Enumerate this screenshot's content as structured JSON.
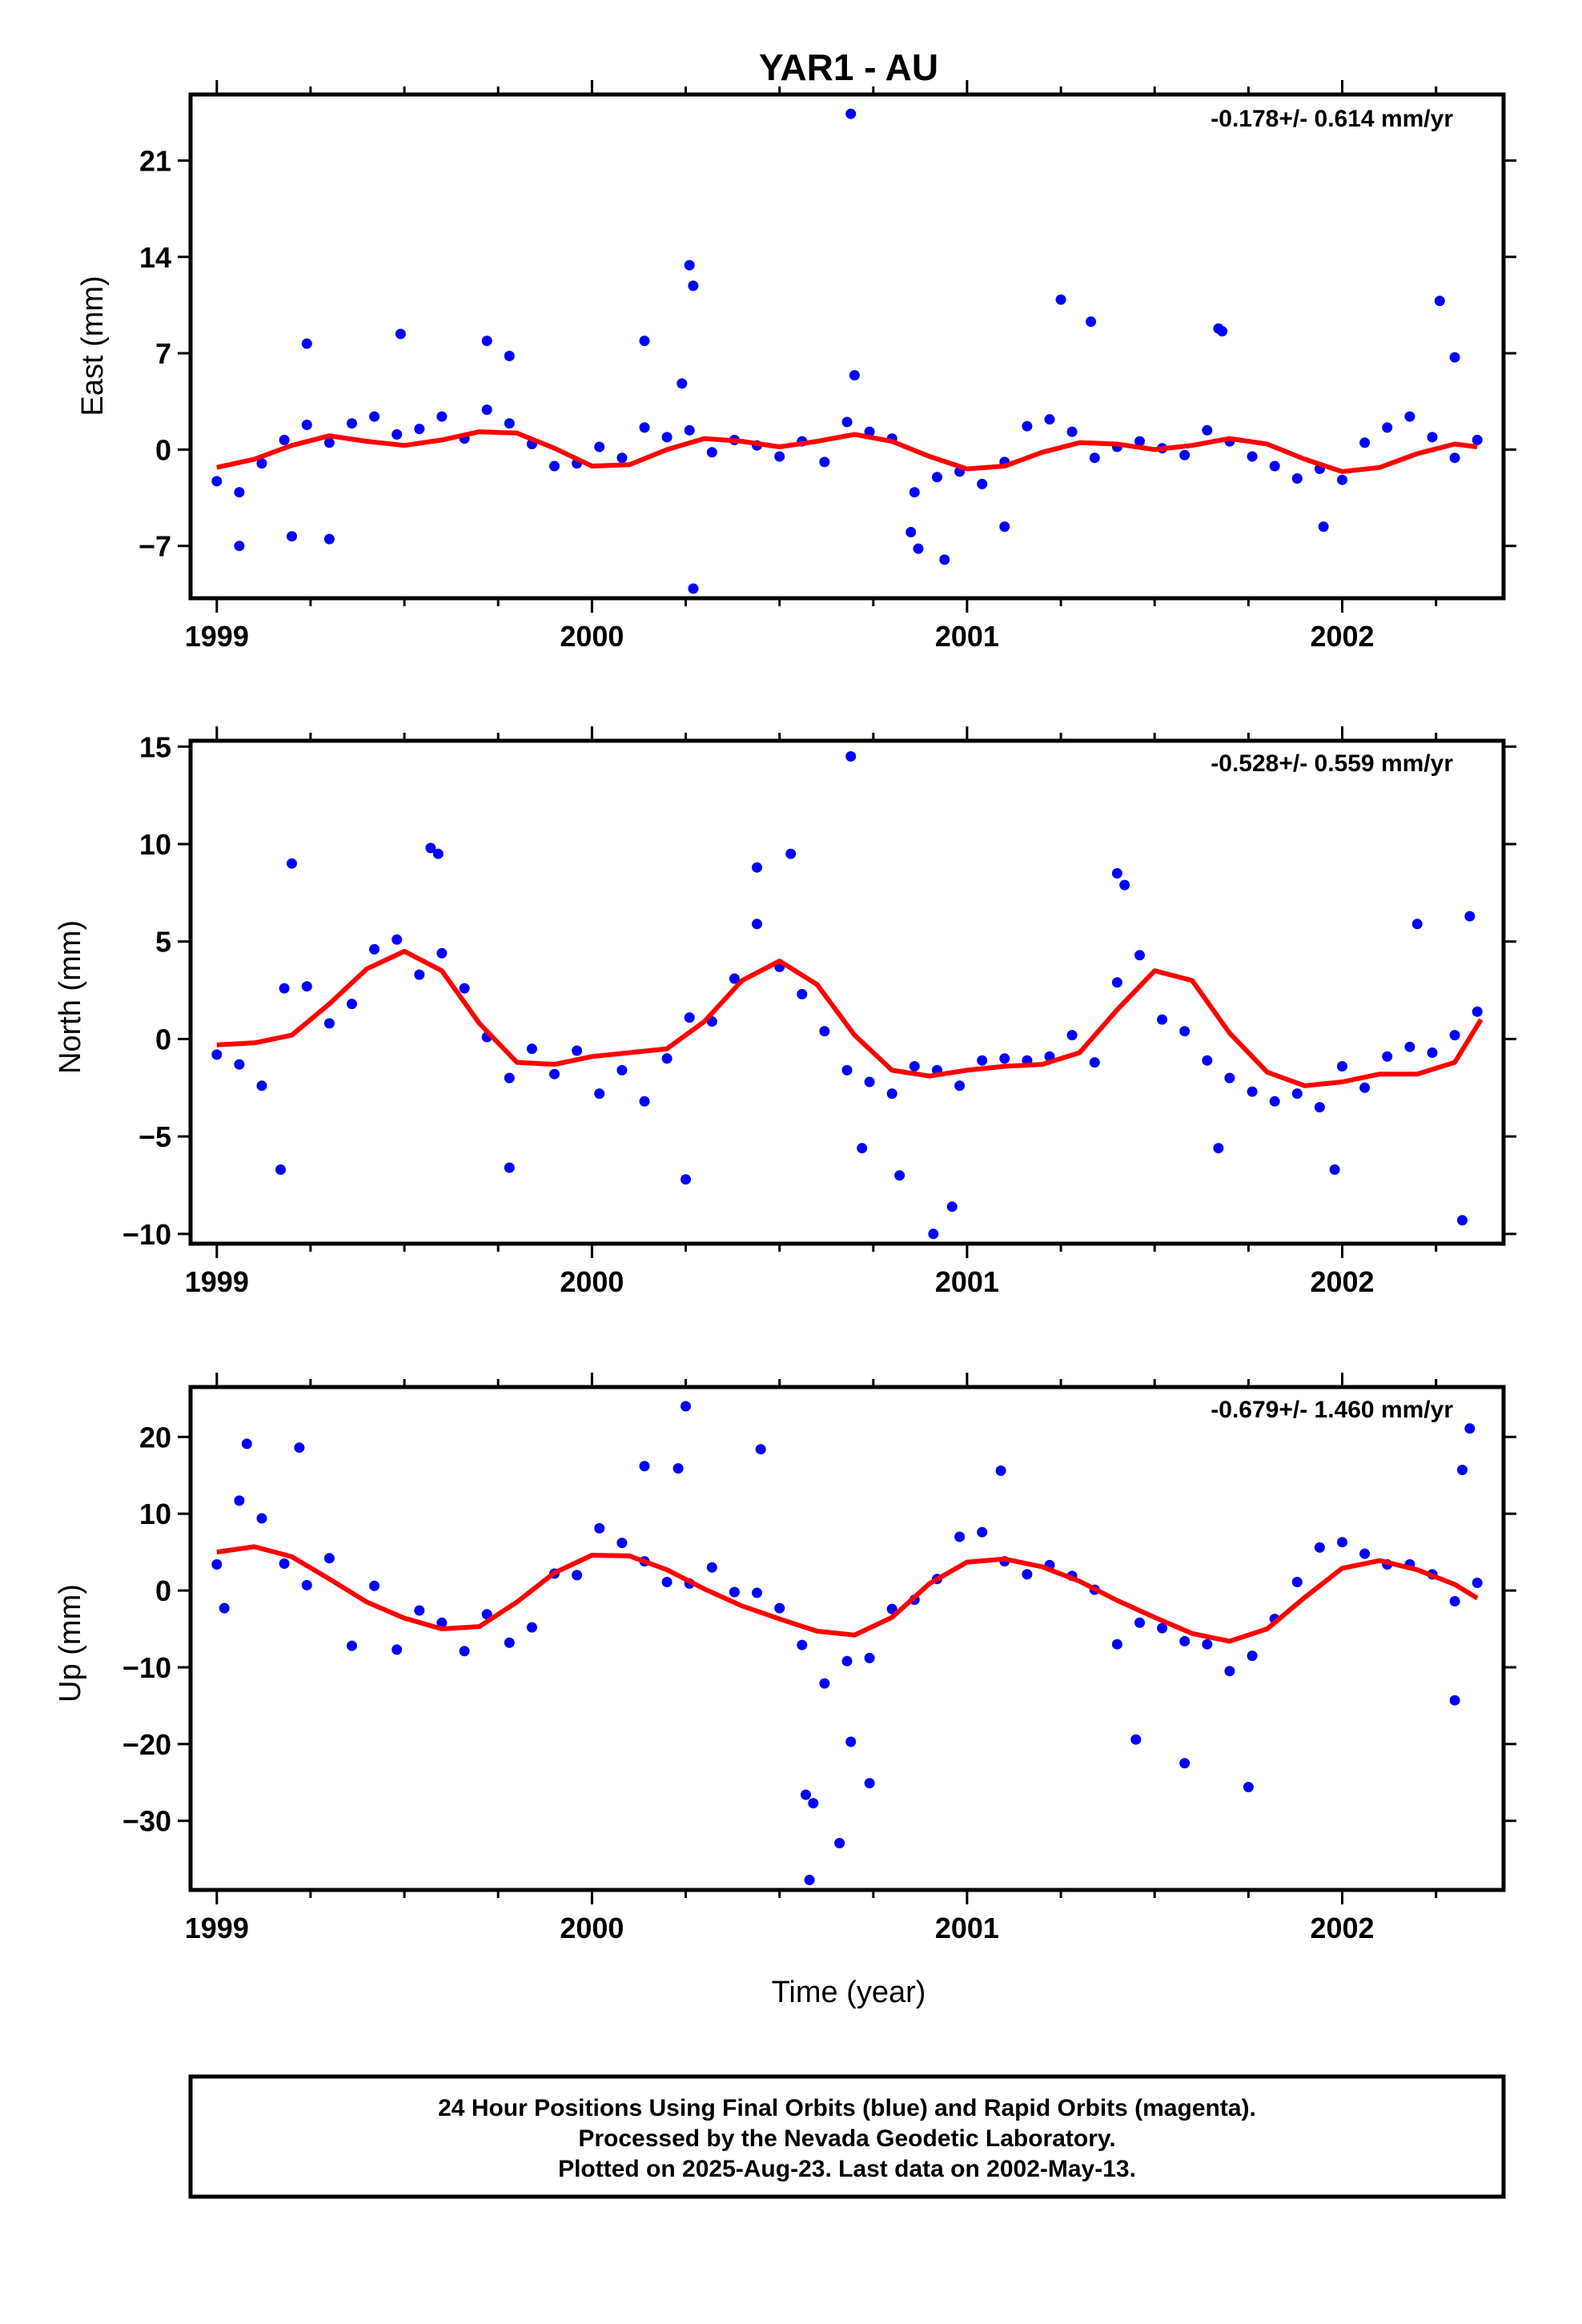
{
  "title": "YAR1 - AU",
  "xlabel": "Time (year)",
  "footer": {
    "line1": "24 Hour Positions Using Final Orbits (blue) and Rapid Orbits (magenta).",
    "line2": "Processed by the Nevada Geodetic Laboratory.",
    "line3": "Plotted on 2025-Aug-23. Last data on 2002-May-13."
  },
  "colors": {
    "points": "#0000ff",
    "fit": "#ff0000",
    "frame": "#000000"
  },
  "chart_data": [
    {
      "type": "scatter",
      "ylabel": "East (mm)",
      "rate": "-0.178+/- 0.614 mm/yr",
      "xlim": [
        1998.93,
        2002.43
      ],
      "ylim": [
        -10.8,
        25.8
      ],
      "xticks": [
        "1999",
        "2000",
        "2001",
        "2002"
      ],
      "yticks": [
        -7,
        0,
        7,
        14,
        21
      ],
      "grid": false,
      "series": [
        {
          "name": "Final Orbits",
          "color": "#0000ff",
          "x": [
            1999.0,
            1999.06,
            1999.12,
            1999.18,
            1999.24,
            1999.3,
            1999.36,
            1999.42,
            1999.48,
            1999.54,
            1999.6,
            1999.66,
            1999.72,
            1999.78,
            1999.84,
            1999.9,
            1999.96,
            2000.02,
            2000.08,
            2000.14,
            2000.2,
            2000.26,
            2000.32,
            2000.38,
            2000.44,
            2000.5,
            2000.56,
            2000.62,
            2000.68,
            2000.74,
            2000.8,
            2000.86,
            2000.92,
            2000.98,
            2001.04,
            2001.1,
            2001.16,
            2001.22,
            2001.28,
            2001.34,
            2001.4,
            2001.46,
            2001.52,
            2001.58,
            2001.64,
            2001.7,
            2001.76,
            2001.82,
            2001.88,
            2001.94,
            2002.0,
            2002.06,
            2002.12,
            2002.18,
            2002.24,
            2002.3,
            2002.36,
            1999.24,
            1999.49,
            1999.72,
            1999.78,
            2000.14,
            2000.24,
            2000.26,
            2000.27,
            2000.27,
            2000.69,
            2000.7,
            2000.85,
            2000.87,
            2000.94,
            2001.1,
            2001.25,
            2001.33,
            2001.67,
            2001.68,
            2001.95,
            2002.26,
            2002.3,
            1999.06,
            1999.2,
            1999.3
          ],
          "y": [
            -2.3,
            -3.1,
            -1.0,
            0.7,
            1.8,
            0.5,
            1.9,
            2.4,
            1.1,
            1.5,
            2.4,
            0.8,
            2.9,
            1.9,
            0.4,
            -1.2,
            -1.0,
            0.2,
            -0.6,
            1.6,
            0.9,
            1.4,
            -0.2,
            0.7,
            0.3,
            -0.5,
            0.6,
            -0.9,
            2.0,
            1.3,
            0.8,
            -3.1,
            -2.0,
            -1.6,
            -2.5,
            -0.9,
            1.7,
            2.2,
            1.3,
            -0.6,
            0.2,
            0.6,
            0.1,
            -0.4,
            1.4,
            0.6,
            -0.5,
            -1.2,
            -2.1,
            -1.4,
            -2.2,
            0.5,
            1.6,
            2.4,
            0.9,
            -0.6,
            0.7,
            7.7,
            8.4,
            7.9,
            6.8,
            7.9,
            4.8,
            13.4,
            11.9,
            -10.1,
            24.4,
            5.4,
            -6.0,
            -7.2,
            -8.0,
            -5.6,
            10.9,
            9.3,
            8.8,
            8.6,
            -5.6,
            10.8,
            6.7,
            -7.0,
            -6.3,
            -6.5
          ]
        },
        {
          "name": "Fit",
          "color": "#ff0000",
          "style": "line",
          "x": [
            1999.0,
            1999.1,
            1999.2,
            1999.3,
            1999.4,
            1999.5,
            1999.6,
            1999.7,
            1999.8,
            1999.9,
            2000.0,
            2000.1,
            2000.2,
            2000.3,
            2000.4,
            2000.5,
            2000.6,
            2000.7,
            2000.8,
            2000.9,
            2001.0,
            2001.1,
            2001.2,
            2001.3,
            2001.4,
            2001.5,
            2001.6,
            2001.7,
            2001.8,
            2001.9,
            2002.0,
            2002.1,
            2002.2,
            2002.3,
            2002.36
          ],
          "y": [
            -1.3,
            -0.7,
            0.3,
            1.0,
            0.6,
            0.3,
            0.7,
            1.3,
            1.2,
            0.1,
            -1.2,
            -1.1,
            0.0,
            0.8,
            0.6,
            0.2,
            0.6,
            1.1,
            0.6,
            -0.5,
            -1.4,
            -1.2,
            -0.2,
            0.5,
            0.4,
            0.0,
            0.3,
            0.8,
            0.4,
            -0.7,
            -1.6,
            -1.3,
            -0.3,
            0.4,
            0.2
          ]
        }
      ]
    },
    {
      "type": "scatter",
      "ylabel": "North (mm)",
      "rate": "-0.528+/- 0.559 mm/yr",
      "xlim": [
        1998.93,
        2002.43
      ],
      "ylim": [
        -10.5,
        15.3
      ],
      "xticks": [
        "1999",
        "2000",
        "2001",
        "2002"
      ],
      "yticks": [
        -10,
        -5,
        0,
        5,
        10,
        15
      ],
      "grid": false,
      "series": [
        {
          "name": "Final Orbits",
          "color": "#0000ff",
          "x": [
            1999.0,
            1999.06,
            1999.12,
            1999.18,
            1999.24,
            1999.3,
            1999.36,
            1999.42,
            1999.48,
            1999.54,
            1999.6,
            1999.66,
            1999.72,
            1999.78,
            1999.84,
            1999.9,
            1999.96,
            2000.02,
            2000.08,
            2000.14,
            2000.2,
            2000.26,
            2000.32,
            2000.38,
            2000.44,
            2000.5,
            2000.56,
            2000.62,
            2000.68,
            2000.74,
            2000.8,
            2000.86,
            2000.92,
            2000.98,
            2001.04,
            2001.1,
            2001.16,
            2001.22,
            2001.28,
            2001.34,
            2001.4,
            2001.46,
            2001.52,
            2001.58,
            2001.64,
            2001.7,
            2001.76,
            2001.82,
            2001.88,
            2001.94,
            2002.0,
            2002.06,
            2002.12,
            2002.18,
            2002.24,
            2002.3,
            2002.36,
            1999.2,
            1999.57,
            1999.59,
            1999.78,
            2000.25,
            2000.44,
            2000.53,
            2000.69,
            2000.72,
            2000.82,
            2000.91,
            2000.96,
            2001.4,
            2001.42,
            2001.67,
            2001.98,
            2002.2,
            2002.32,
            2002.34,
            1999.17
          ],
          "y": [
            -0.8,
            -1.3,
            -2.4,
            2.6,
            2.7,
            0.8,
            1.8,
            4.6,
            5.1,
            3.3,
            4.4,
            2.6,
            0.1,
            -2.0,
            -0.5,
            -1.8,
            -0.6,
            -2.8,
            -1.6,
            -3.2,
            -1.0,
            1.1,
            0.9,
            3.1,
            5.9,
            3.7,
            2.3,
            0.4,
            -1.6,
            -2.2,
            -2.8,
            -1.4,
            -1.6,
            -2.4,
            -1.1,
            -1.0,
            -1.1,
            -0.9,
            0.2,
            -1.2,
            2.9,
            4.3,
            1.0,
            0.4,
            -1.1,
            -2.0,
            -2.7,
            -3.2,
            -2.8,
            -3.5,
            -1.4,
            -2.5,
            -0.9,
            -0.4,
            -0.7,
            0.2,
            1.4,
            9.0,
            9.8,
            9.5,
            -6.6,
            -7.2,
            8.8,
            9.5,
            14.5,
            -5.6,
            -7.0,
            -10.0,
            -8.6,
            8.5,
            7.9,
            -5.6,
            -6.7,
            5.9,
            -9.3,
            6.3,
            -6.7
          ]
        },
        {
          "name": "Fit",
          "color": "#ff0000",
          "style": "line",
          "x": [
            1999.0,
            1999.1,
            1999.2,
            1999.3,
            1999.4,
            1999.5,
            1999.6,
            1999.7,
            1999.8,
            1999.9,
            2000.0,
            2000.1,
            2000.2,
            2000.3,
            2000.4,
            2000.5,
            2000.6,
            2000.7,
            2000.8,
            2000.9,
            2001.0,
            2001.1,
            2001.2,
            2001.3,
            2001.4,
            2001.5,
            2001.6,
            2001.7,
            2001.8,
            2001.9,
            2002.0,
            2002.1,
            2002.2,
            2002.3,
            2002.37
          ],
          "y": [
            -0.3,
            -0.2,
            0.2,
            1.8,
            3.6,
            4.5,
            3.5,
            0.8,
            -1.2,
            -1.3,
            -0.9,
            -0.7,
            -0.5,
            0.9,
            3.0,
            4.0,
            2.8,
            0.2,
            -1.6,
            -1.9,
            -1.6,
            -1.4,
            -1.3,
            -0.7,
            1.5,
            3.5,
            3.0,
            0.3,
            -1.7,
            -2.4,
            -2.2,
            -1.8,
            -1.8,
            -1.2,
            1.0
          ]
        }
      ]
    },
    {
      "type": "scatter",
      "ylabel": "Up (mm)",
      "rate": "-0.679+/- 1.460 mm/yr",
      "xlim": [
        1998.93,
        2002.43
      ],
      "ylim": [
        -39.0,
        26.5
      ],
      "xticks": [
        "1999",
        "2000",
        "2001",
        "2002"
      ],
      "yticks": [
        -30,
        -20,
        -10,
        0,
        10,
        20
      ],
      "grid": false,
      "series": [
        {
          "name": "Final Orbits",
          "color": "#0000ff",
          "x": [
            1999.0,
            1999.06,
            1999.12,
            1999.18,
            1999.24,
            1999.3,
            1999.36,
            1999.42,
            1999.48,
            1999.54,
            1999.6,
            1999.66,
            1999.72,
            1999.78,
            1999.84,
            1999.9,
            1999.96,
            2000.02,
            2000.08,
            2000.14,
            2000.2,
            2000.26,
            2000.32,
            2000.38,
            2000.44,
            2000.5,
            2000.56,
            2000.62,
            2000.68,
            2000.74,
            2000.8,
            2000.86,
            2000.92,
            2000.98,
            2001.04,
            2001.1,
            2001.16,
            2001.22,
            2001.28,
            2001.34,
            2001.4,
            2001.46,
            2001.52,
            2001.58,
            2001.64,
            2001.7,
            2001.76,
            2001.82,
            2001.88,
            2001.94,
            2002.0,
            2002.06,
            2002.12,
            2002.18,
            2002.24,
            2002.3,
            2002.36,
            1999.08,
            1999.22,
            2000.14,
            2000.23,
            2000.25,
            2000.45,
            2000.57,
            2000.59,
            2000.58,
            2000.66,
            2000.69,
            2000.74,
            2001.09,
            2001.45,
            2001.58,
            2001.75,
            2002.34,
            2002.32,
            2002.3,
            1999.02
          ],
          "y": [
            3.4,
            11.7,
            9.4,
            3.5,
            0.7,
            4.2,
            -7.2,
            0.6,
            -7.7,
            -2.6,
            -4.2,
            -7.9,
            -3.1,
            -6.8,
            -4.8,
            2.2,
            2.0,
            8.1,
            6.2,
            3.8,
            1.1,
            0.9,
            3.0,
            -0.2,
            -0.3,
            -2.3,
            -7.1,
            -12.1,
            -9.2,
            -8.8,
            -2.4,
            -1.2,
            1.5,
            7.0,
            7.6,
            3.8,
            2.1,
            3.3,
            1.9,
            0.1,
            -7.0,
            -4.2,
            -4.9,
            -6.6,
            -7.0,
            -10.5,
            -8.5,
            -3.7,
            1.1,
            5.6,
            6.3,
            4.8,
            3.4,
            3.4,
            2.1,
            -1.4,
            1.0,
            19.1,
            18.6,
            16.2,
            15.9,
            24.0,
            18.4,
            -26.6,
            -27.7,
            -37.7,
            -32.9,
            -19.7,
            -25.1,
            15.6,
            -19.4,
            -22.5,
            -25.6,
            21.1,
            15.7,
            -14.3,
            -2.3
          ]
        },
        {
          "name": "Fit",
          "color": "#ff0000",
          "style": "line",
          "x": [
            1999.0,
            1999.1,
            1999.2,
            1999.3,
            1999.4,
            1999.5,
            1999.6,
            1999.7,
            1999.8,
            1999.9,
            2000.0,
            2000.1,
            2000.2,
            2000.3,
            2000.4,
            2000.5,
            2000.6,
            2000.7,
            2000.8,
            2000.9,
            2001.0,
            2001.1,
            2001.2,
            2001.3,
            2001.4,
            2001.5,
            2001.6,
            2001.7,
            2001.8,
            2001.9,
            2002.0,
            2002.1,
            2002.2,
            2002.3,
            2002.36
          ],
          "y": [
            5.0,
            5.7,
            4.4,
            1.5,
            -1.5,
            -3.6,
            -5.0,
            -4.7,
            -1.5,
            2.3,
            4.6,
            4.5,
            2.7,
            0.2,
            -2.0,
            -3.7,
            -5.3,
            -5.8,
            -3.5,
            0.9,
            3.7,
            4.1,
            3.1,
            1.2,
            -1.3,
            -3.5,
            -5.6,
            -6.6,
            -5.0,
            -0.9,
            2.9,
            3.9,
            2.7,
            0.8,
            -1.0
          ]
        }
      ]
    }
  ]
}
